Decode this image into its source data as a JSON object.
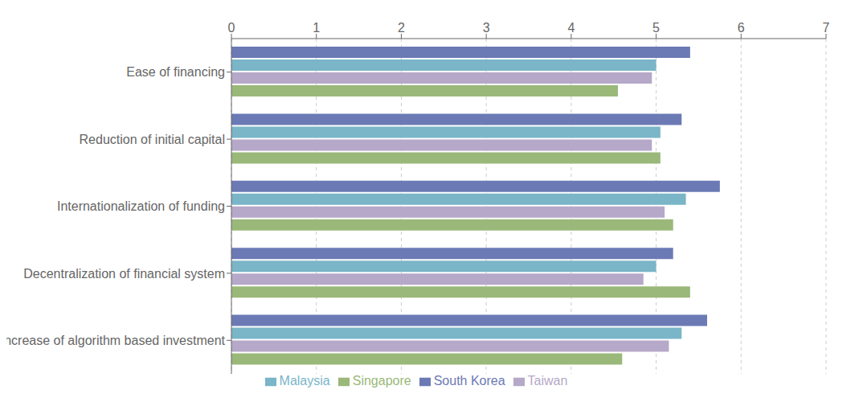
{
  "chart_data": {
    "type": "bar",
    "orientation": "horizontal",
    "categories": [
      "Ease of financing",
      "Reduction of initial capital",
      "Internationalization of funding",
      "Decentralization of financial system",
      "Increase of algorithm based investment"
    ],
    "series": [
      {
        "name": "South Korea",
        "color": "#6b7ab5",
        "values": [
          5.4,
          5.3,
          5.75,
          5.2,
          5.6
        ]
      },
      {
        "name": "Malaysia",
        "color": "#7ab5c8",
        "values": [
          5.0,
          5.05,
          5.35,
          5.0,
          5.3
        ]
      },
      {
        "name": "Taiwan",
        "color": "#b5a8c8",
        "values": [
          4.95,
          4.95,
          5.1,
          4.85,
          5.15
        ]
      },
      {
        "name": "Singapore",
        "color": "#9ab87a",
        "values": [
          4.55,
          5.05,
          5.2,
          5.4,
          4.6
        ]
      }
    ],
    "xlim": [
      0,
      7
    ],
    "xticks": [
      0,
      1,
      2,
      3,
      4,
      5,
      6,
      7
    ],
    "grid": true,
    "legend": "bottom"
  }
}
